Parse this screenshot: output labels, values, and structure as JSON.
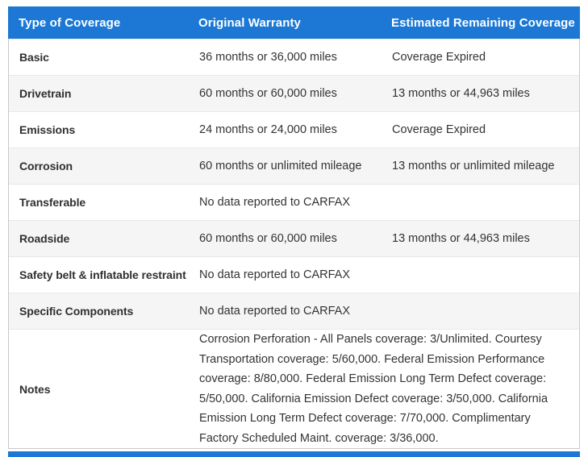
{
  "table": {
    "columns": [
      "Type of Coverage",
      "Original Warranty",
      "Estimated Remaining Coverage"
    ],
    "rows": [
      {
        "type": "Basic",
        "original": "36 months or 36,000 miles",
        "remaining": "Coverage Expired"
      },
      {
        "type": "Drivetrain",
        "original": "60 months or 60,000 miles",
        "remaining": "13 months or 44,963 miles"
      },
      {
        "type": "Emissions",
        "original": "24 months or 24,000 miles",
        "remaining": "Coverage Expired"
      },
      {
        "type": "Corrosion",
        "original": "60 months or unlimited mileage",
        "remaining": "13 months or unlimited mileage"
      },
      {
        "type": "Transferable",
        "original": "No data reported to CARFAX",
        "remaining": ""
      },
      {
        "type": "Roadside",
        "original": "60 months or 60,000 miles",
        "remaining": "13 months or 44,963 miles"
      },
      {
        "type": "Safety belt & inflatable restraint",
        "original": "No data reported to CARFAX",
        "remaining": ""
      },
      {
        "type": "Specific Components",
        "original": "No data reported to CARFAX",
        "remaining": ""
      }
    ],
    "notes": {
      "label": "Notes",
      "text": "Corrosion Perforation - All Panels coverage: 3/Unlimited. Courtesy Transportation coverage: 5/60,000. Federal Emission Performance coverage: 8/80,000. Federal Emission Long Term Defect coverage: 5/50,000. California Emission Defect coverage: 3/50,000. California Emission Long Term Defect coverage: 7/70,000. Complimentary Factory Scheduled Maint. coverage: 3/36,000."
    }
  },
  "colors": {
    "header_bg": "#1c78d4",
    "header_text": "#ffffff",
    "row_alt_bg": "#f5f5f5",
    "text": "#333333",
    "border_outer": "#c8c8c8",
    "border_inner": "#e8e8e8"
  }
}
